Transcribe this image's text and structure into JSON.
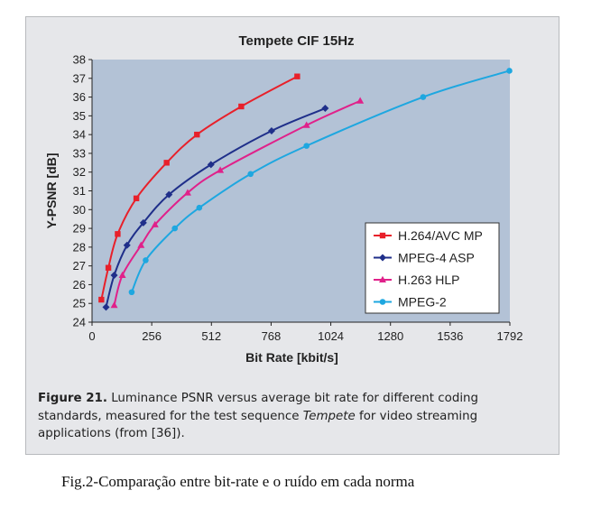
{
  "chart_data": {
    "type": "line",
    "title": "Tempete CIF 15Hz",
    "xlabel": "Bit Rate [kbit/s]",
    "ylabel": "Y-PSNR [dB]",
    "xlim": [
      0,
      1792
    ],
    "ylim": [
      24,
      38
    ],
    "xticks": [
      0,
      256,
      512,
      768,
      1024,
      1280,
      1536,
      1792
    ],
    "yticks": [
      24,
      25,
      26,
      27,
      28,
      29,
      30,
      31,
      32,
      33,
      34,
      35,
      36,
      37,
      38
    ],
    "grid": false,
    "legend_position": "bottom-right",
    "series": [
      {
        "name": "H.264/AVC MP",
        "color": "#e8202a",
        "marker": "square",
        "x": [
          40,
          70,
          110,
          190,
          320,
          450,
          640,
          880
        ],
        "y": [
          25.2,
          26.9,
          28.7,
          30.6,
          32.5,
          34.0,
          35.5,
          37.1
        ]
      },
      {
        "name": "MPEG-4 ASP",
        "color": "#1f2f8a",
        "marker": "diamond",
        "x": [
          60,
          95,
          150,
          220,
          330,
          510,
          770,
          1000
        ],
        "y": [
          24.8,
          26.5,
          28.1,
          29.3,
          30.8,
          32.4,
          34.2,
          35.4
        ]
      },
      {
        "name": "H.263 HLP",
        "color": "#e0218a",
        "marker": "triangle",
        "x": [
          95,
          130,
          210,
          270,
          410,
          550,
          920,
          1150
        ],
        "y": [
          24.9,
          26.5,
          28.1,
          29.2,
          30.9,
          32.1,
          34.5,
          35.8
        ]
      },
      {
        "name": "MPEG-2",
        "color": "#1ea7e0",
        "marker": "circle",
        "x": [
          170,
          230,
          355,
          460,
          680,
          920,
          1420,
          1790
        ],
        "y": [
          25.6,
          27.3,
          29.0,
          30.1,
          31.9,
          33.4,
          36.0,
          37.4
        ]
      }
    ]
  },
  "caption": {
    "label": "Figure 21.",
    "text_before": " Luminance PSNR versus average bit rate for different coding standards, measured for the test sequence ",
    "italic": "Tempete",
    "text_after": " for video streaming applications (from [36])."
  },
  "footer_caption": "Fig.2-Comparação entre bit-rate e o ruído em cada norma",
  "colors": {
    "plot_bg": "#b3c2d6",
    "panel_bg": "#e6e7ea",
    "axis": "#222222"
  }
}
